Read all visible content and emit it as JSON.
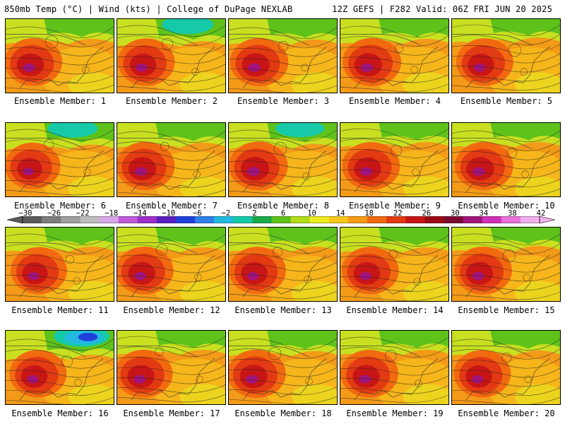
{
  "header": {
    "title": "850mb Temp (°C) | Wind (kts) | College of DuPage NEXLAB",
    "run_info": "12Z GEFS | F282 Valid: 06Z FRI JUN 20 2025"
  },
  "colorbar": {
    "ticks": [
      "−30",
      "−26",
      "−22",
      "−18",
      "−14",
      "−10",
      "−6",
      "−2",
      "2",
      "6",
      "10",
      "14",
      "18",
      "22",
      "26",
      "30",
      "34",
      "38",
      "42"
    ],
    "colors": [
      "#5a5a5a",
      "#7c7c7c",
      "#9e9e9e",
      "#bdbdbd",
      "#d7a8e8",
      "#c05bd8",
      "#9b2fc8",
      "#5a1fc0",
      "#1f3fd8",
      "#2f7fe8",
      "#22b8e0",
      "#16c9a8",
      "#1aa84a",
      "#5ec21a",
      "#b2dc18",
      "#ecec20",
      "#f6c81a",
      "#f79a14",
      "#f26a10",
      "#e23a12",
      "#c81616",
      "#9a0a14",
      "#7a0a30",
      "#a0147c",
      "#d030b8",
      "#e870dc",
      "#f0b0ec"
    ]
  },
  "members": [
    {
      "label": "Ensemble Member: 1",
      "warm": 0.75,
      "cool": 0.55
    },
    {
      "label": "Ensemble Member: 2",
      "warm": 0.7,
      "cool": 0.75
    },
    {
      "label": "Ensemble Member: 3",
      "warm": 0.8,
      "cool": 0.6
    },
    {
      "label": "Ensemble Member: 4",
      "warm": 0.8,
      "cool": 0.55
    },
    {
      "label": "Ensemble Member: 5",
      "warm": 0.7,
      "cool": 0.45
    },
    {
      "label": "Ensemble Member: 6",
      "warm": 0.6,
      "cool": 0.7
    },
    {
      "label": "Ensemble Member: 7",
      "warm": 0.8,
      "cool": 0.55
    },
    {
      "label": "Ensemble Member: 8",
      "warm": 0.85,
      "cool": 0.65
    },
    {
      "label": "Ensemble Member: 9",
      "warm": 0.75,
      "cool": 0.5
    },
    {
      "label": "Ensemble Member: 10",
      "warm": 0.8,
      "cool": 0.5
    },
    {
      "label": "Ensemble Member: 11",
      "warm": 0.65,
      "cool": 0.5
    },
    {
      "label": "Ensemble Member: 12",
      "warm": 0.75,
      "cool": 0.55
    },
    {
      "label": "Ensemble Member: 13",
      "warm": 0.7,
      "cool": 0.5
    },
    {
      "label": "Ensemble Member: 14",
      "warm": 0.7,
      "cool": 0.55
    },
    {
      "label": "Ensemble Member: 15",
      "warm": 0.75,
      "cool": 0.45
    },
    {
      "label": "Ensemble Member: 16",
      "warm": 0.7,
      "cool": 0.9
    },
    {
      "label": "Ensemble Member: 17",
      "warm": 0.75,
      "cool": 0.5
    },
    {
      "label": "Ensemble Member: 18",
      "warm": 0.8,
      "cool": 0.6
    },
    {
      "label": "Ensemble Member: 19",
      "warm": 0.75,
      "cool": 0.5
    },
    {
      "label": "Ensemble Member: 20",
      "warm": 0.7,
      "cool": 0.55
    }
  ]
}
